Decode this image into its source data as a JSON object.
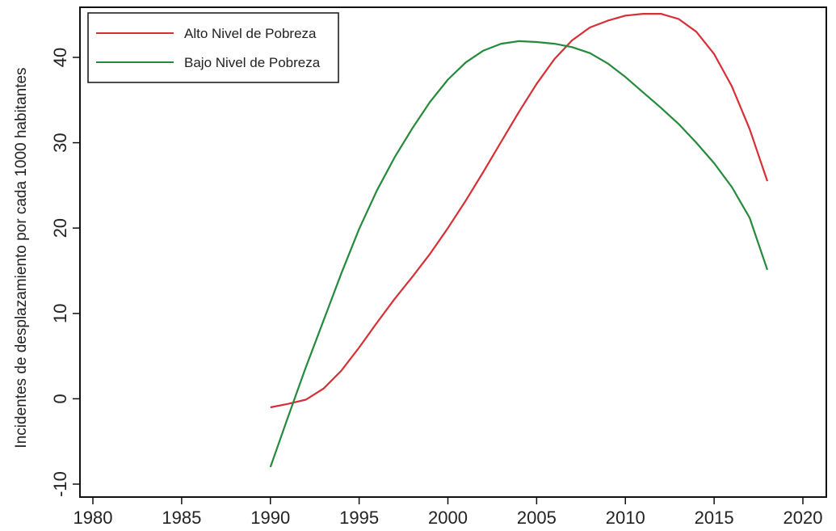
{
  "chart_data": {
    "type": "line",
    "title": "",
    "xlabel": "",
    "ylabel": "Incidentes de desplazamiento por cada 1000 habitantes",
    "xlim": [
      1980,
      2020
    ],
    "ylim": [
      -10,
      45
    ],
    "xticks": [
      "1980",
      "1985",
      "1990",
      "1995",
      "2000",
      "2005",
      "2010",
      "2015",
      "2020"
    ],
    "yticks": [
      "-10",
      "0",
      "10",
      "20",
      "30",
      "40"
    ],
    "grid": false,
    "legend_position": "top-left",
    "series": [
      {
        "name": "Alto Nivel de Pobreza",
        "color": "#d62f36",
        "x": [
          1990,
          1991,
          1992,
          1993,
          1994,
          1995,
          1996,
          1997,
          1998,
          1999,
          2000,
          2001,
          2002,
          2003,
          2004,
          2005,
          2006,
          2007,
          2008,
          2009,
          2010,
          2011,
          2012,
          2013,
          2014,
          2015,
          2016,
          2017,
          2018
        ],
        "y": [
          -1.0,
          -0.6,
          -0.1,
          1.2,
          3.3,
          6.0,
          8.9,
          11.7,
          14.3,
          17.0,
          20.0,
          23.2,
          26.6,
          30.1,
          33.6,
          36.9,
          39.8,
          42.0,
          43.5,
          44.3,
          44.9,
          45.1,
          45.1,
          44.5,
          43.0,
          40.4,
          36.6,
          31.6,
          25.5
        ]
      },
      {
        "name": "Bajo Nivel de Pobreza",
        "color": "#258a3c",
        "x": [
          1990,
          1991,
          1992,
          1993,
          1994,
          1995,
          1996,
          1997,
          1998,
          1999,
          2000,
          2001,
          2002,
          2003,
          2004,
          2005,
          2006,
          2007,
          2008,
          2009,
          2010,
          2011,
          2012,
          2013,
          2014,
          2015,
          2016,
          2017,
          2018
        ],
        "y": [
          -8.0,
          -2.1,
          3.7,
          9.2,
          14.7,
          19.9,
          24.4,
          28.3,
          31.7,
          34.8,
          37.4,
          39.4,
          40.8,
          41.6,
          41.9,
          41.8,
          41.6,
          41.2,
          40.5,
          39.3,
          37.7,
          35.9,
          34.1,
          32.2,
          30.0,
          27.6,
          24.8,
          21.2,
          15.1
        ]
      }
    ]
  }
}
